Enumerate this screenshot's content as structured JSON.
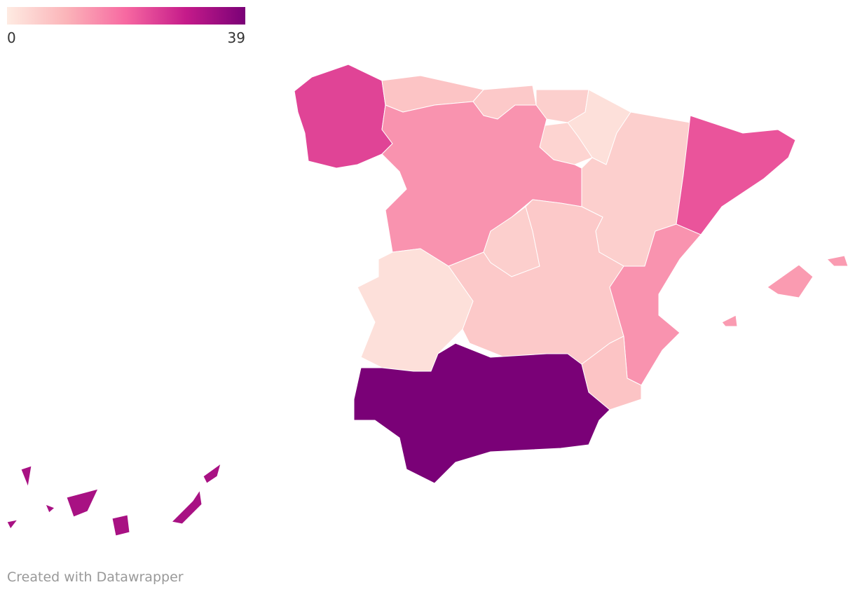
{
  "chart_data": {
    "type": "choropleth",
    "scale": {
      "min": 0,
      "max": 39,
      "colors": [
        "#feebe2",
        "#fbb4b9",
        "#f768a1",
        "#c51b8a",
        "#7a0177"
      ]
    },
    "values": [
      24,
      7,
      6,
      5,
      2,
      4,
      5,
      22,
      14,
      5,
      6,
      2,
      14,
      7,
      39,
      13,
      33
    ],
    "footer": "Created with Datawrapper"
  }
}
